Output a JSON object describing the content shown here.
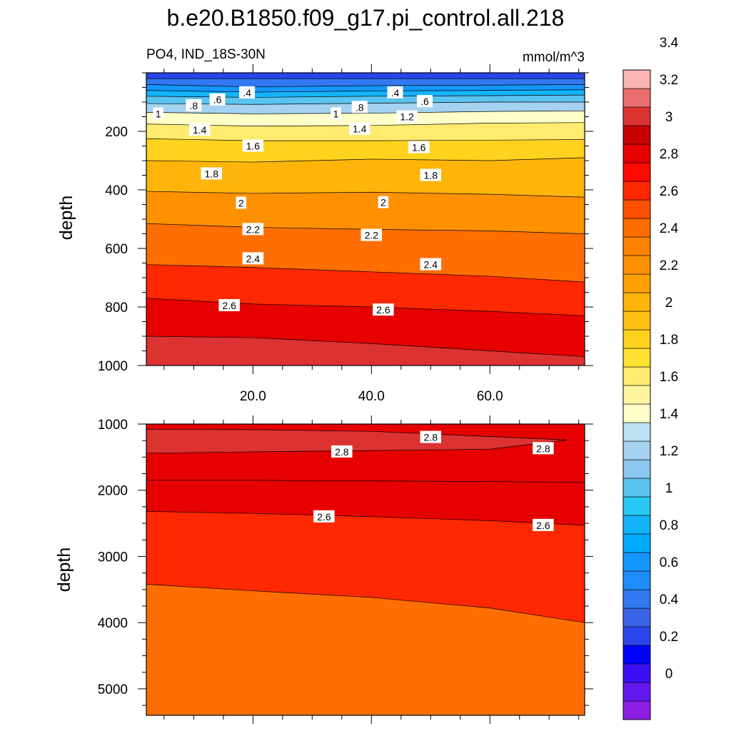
{
  "figure": {
    "title": "b.e20.B1850.f09_g17.pi_control.all.218",
    "left_subtitle": "PO4, IND_18S-30N",
    "right_subtitle": "mmol/m^3"
  },
  "chart_data": [
    {
      "type": "contour",
      "panel": "upper",
      "variable": "PO4",
      "units": "mmol/m^3",
      "ylabel": "depth",
      "xlabel": "",
      "xlim": [
        2,
        76
      ],
      "ylim": [
        1000,
        0
      ],
      "x_ticks": [
        20,
        40,
        60
      ],
      "x_tick_labels": [
        "20.0",
        "40.0",
        "60.0"
      ],
      "y_ticks": [
        200,
        400,
        600,
        800,
        1000
      ],
      "y_tick_labels": [
        "200",
        "400",
        "600",
        "800",
        "1000"
      ],
      "contour_interval": 0.2,
      "level_depths": {
        "x": [
          2,
          20,
          40,
          60,
          76
        ],
        "levels": [
          {
            "level": 0.2,
            "depth": [
              20,
              20,
              20,
              20,
              20
            ]
          },
          {
            "level": 0.4,
            "depth": [
              40,
              48,
              44,
              42,
              40
            ]
          },
          {
            "level": 0.6,
            "depth": [
              60,
              66,
              62,
              60,
              58
            ]
          },
          {
            "level": 0.8,
            "depth": [
              80,
              84,
              80,
              78,
              76
            ]
          },
          {
            "level": 1.0,
            "depth": [
              105,
              108,
              104,
              100,
              100
            ]
          },
          {
            "level": 1.2,
            "depth": [
              135,
              140,
              138,
              132,
              130
            ]
          },
          {
            "level": 1.4,
            "depth": [
              175,
              182,
              180,
              172,
              170
            ]
          },
          {
            "level": 1.6,
            "depth": [
              225,
              232,
              232,
              230,
              228
            ]
          },
          {
            "level": 1.8,
            "depth": [
              300,
              305,
              295,
              300,
              290
            ]
          },
          {
            "level": 2.0,
            "depth": [
              405,
              412,
              408,
              415,
              425
            ]
          },
          {
            "level": 2.2,
            "depth": [
              515,
              528,
              535,
              540,
              550
            ]
          },
          {
            "level": 2.4,
            "depth": [
              655,
              665,
              680,
              695,
              715
            ]
          },
          {
            "level": 2.6,
            "depth": [
              770,
              790,
              800,
              815,
              830
            ]
          },
          {
            "level": 2.8,
            "depth": [
              900,
              905,
              925,
              950,
              970
            ]
          }
        ]
      },
      "line_labels": [
        {
          "text": "1",
          "x": 4,
          "depth": 140
        },
        {
          "text": ".8",
          "x": 10,
          "depth": 112
        },
        {
          "text": ".6",
          "x": 14,
          "depth": 92
        },
        {
          "text": ".4",
          "x": 19,
          "depth": 68
        },
        {
          "text": "1.4",
          "x": 11,
          "depth": 195
        },
        {
          "text": "1.6",
          "x": 20,
          "depth": 250
        },
        {
          "text": "1.8",
          "x": 13,
          "depth": 345
        },
        {
          "text": "2",
          "x": 18,
          "depth": 445
        },
        {
          "text": "2.2",
          "x": 20,
          "depth": 535
        },
        {
          "text": "2.4",
          "x": 20,
          "depth": 635
        },
        {
          "text": "2.6",
          "x": 16,
          "depth": 795
        },
        {
          "text": "1",
          "x": 34,
          "depth": 140
        },
        {
          "text": ".8",
          "x": 38,
          "depth": 118
        },
        {
          "text": ".4",
          "x": 44,
          "depth": 68
        },
        {
          "text": ".6",
          "x": 49,
          "depth": 98
        },
        {
          "text": "1.2",
          "x": 46,
          "depth": 150
        },
        {
          "text": "1.4",
          "x": 38,
          "depth": 192
        },
        {
          "text": "1.6",
          "x": 48,
          "depth": 255
        },
        {
          "text": "1.8",
          "x": 50,
          "depth": 350
        },
        {
          "text": "2",
          "x": 42,
          "depth": 443
        },
        {
          "text": "2.2",
          "x": 40,
          "depth": 555
        },
        {
          "text": "2.4",
          "x": 50,
          "depth": 655
        },
        {
          "text": "2.6",
          "x": 42,
          "depth": 810
        }
      ]
    },
    {
      "type": "contour",
      "panel": "lower",
      "variable": "PO4",
      "units": "mmol/m^3",
      "ylabel": "depth",
      "xlabel": "",
      "xlim": [
        2,
        76
      ],
      "ylim": [
        5400,
        1000
      ],
      "x_ticks": [
        20,
        40,
        60
      ],
      "y_ticks": [
        1000,
        2000,
        3000,
        4000,
        5000
      ],
      "y_tick_labels": [
        "1000",
        "2000",
        "3000",
        "4000",
        "5000"
      ],
      "level_depths": {
        "x": [
          2,
          20,
          40,
          60,
          76
        ],
        "levels": [
          {
            "level": 2.8,
            "depth": [
              1850,
              1850,
              1860,
              1870,
              1880
            ]
          },
          {
            "level": 2.6,
            "depth": [
              2320,
              2350,
              2400,
              2460,
              2530
            ]
          },
          {
            "level": 2.4,
            "depth": [
              3420,
              3520,
              3620,
              3780,
              4000
            ]
          }
        ]
      },
      "max_region": {
        "level": 2.8,
        "x": [
          2,
          20,
          40,
          55,
          73,
          60,
          40,
          20,
          2
        ],
        "depth": [
          1080,
          1085,
          1110,
          1170,
          1240,
          1380,
          1400,
          1420,
          1440
        ]
      },
      "line_labels": [
        {
          "text": "2.8",
          "x": 50,
          "depth": 1200
        },
        {
          "text": "2.8",
          "x": 35,
          "depth": 1420
        },
        {
          "text": "2.8",
          "x": 69,
          "depth": 1370
        },
        {
          "text": "2.6",
          "x": 32,
          "depth": 2400
        },
        {
          "text": "2.6",
          "x": 69,
          "depth": 2530
        }
      ]
    }
  ],
  "colorbar": {
    "label_values": [
      "0",
      "0.2",
      "0.4",
      "0.6",
      "0.8",
      "1",
      "1.2",
      "1.4",
      "1.6",
      "1.8",
      "2",
      "2.2",
      "2.4",
      "2.6",
      "2.8",
      "3",
      "3.2",
      "3.4"
    ],
    "colors": [
      "#8c1ee6",
      "#6418f0",
      "#3c10f5",
      "#0000ff",
      "#2a46ea",
      "#3c64e6",
      "#3278f0",
      "#1e8cfa",
      "#1496ff",
      "#00aaff",
      "#14b4fa",
      "#28c8f5",
      "#5ac3f0",
      "#8cc8f0",
      "#a5d2f0",
      "#bee1f5",
      "#ffffc8",
      "#fff5a0",
      "#ffeb6e",
      "#ffe132",
      "#ffd21e",
      "#ffc314",
      "#ffb40a",
      "#ffa000",
      "#ff9100",
      "#ff8200",
      "#ff6e00",
      "#ff5000",
      "#ff2800",
      "#ff0a00",
      "#e60000",
      "#c80000",
      "#dc3232",
      "#eb6e6e",
      "#fab4b4"
    ]
  }
}
